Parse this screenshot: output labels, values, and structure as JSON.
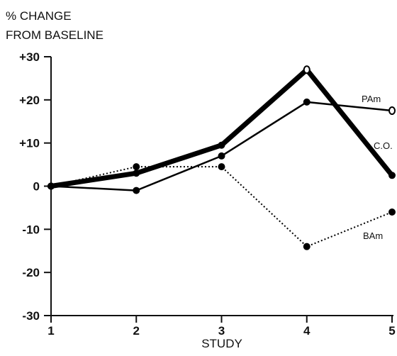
{
  "chart_data": {
    "type": "line",
    "ylabel_line1": "% CHANGE",
    "ylabel_line2": "FROM BASELINE",
    "xlabel": "STUDY",
    "x": [
      1,
      2,
      3,
      4,
      5
    ],
    "xticks": [
      "1",
      "2",
      "3",
      "4",
      "5"
    ],
    "ylim": [
      -30,
      30
    ],
    "yticks": [
      {
        "value": 30,
        "label": "+30"
      },
      {
        "value": 20,
        "label": "+20"
      },
      {
        "value": 10,
        "label": "+10"
      },
      {
        "value": 0,
        "label": "0"
      },
      {
        "value": -10,
        "label": "-10"
      },
      {
        "value": -20,
        "label": "-20"
      },
      {
        "value": -30,
        "label": "-30"
      }
    ],
    "grid": false,
    "legend": "none (series labeled at line ends)",
    "series": [
      {
        "name": "C.O.",
        "values": [
          0,
          3,
          9.5,
          27,
          2.5
        ],
        "style": "thick",
        "marker": "filled",
        "last_marker": "filled",
        "color": "#000000"
      },
      {
        "name": "PAm",
        "values": [
          0,
          -1,
          7,
          19.5,
          17.5
        ],
        "style": "solid",
        "marker": "filled",
        "last_marker": "open",
        "color": "#000000"
      },
      {
        "name": "BAm",
        "values": [
          0,
          4.5,
          4.5,
          -14,
          -6
        ],
        "style": "dotted",
        "marker": "filled",
        "last_marker": "filled",
        "color": "#000000"
      }
    ]
  }
}
